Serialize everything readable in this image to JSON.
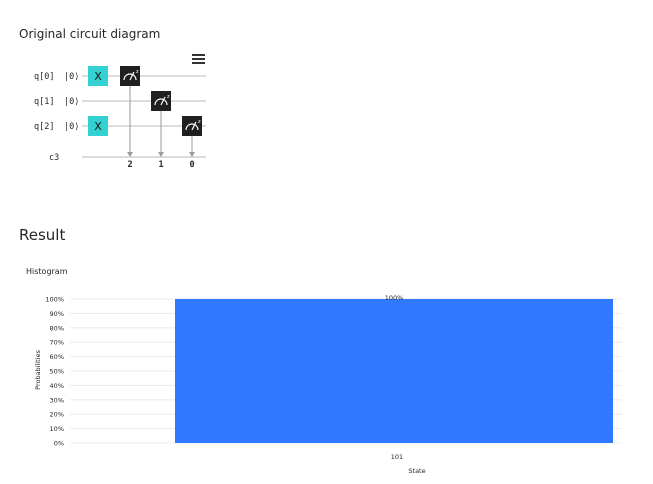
{
  "circuit_section": {
    "title": "Original circuit diagram",
    "qubits": [
      {
        "label": "q[0]",
        "ket": "|0⟩"
      },
      {
        "label": "q[1]",
        "ket": "|0⟩"
      },
      {
        "label": "q[2]",
        "ket": "|0⟩"
      }
    ],
    "classical_register": "c3",
    "gates": [
      {
        "type": "X",
        "qubit": 0,
        "label": "X"
      },
      {
        "type": "X",
        "qubit": 2,
        "label": "X"
      }
    ],
    "measurements": [
      {
        "qubit": 0,
        "bit_label": "2"
      },
      {
        "qubit": 1,
        "bit_label": "1"
      },
      {
        "qubit": 2,
        "bit_label": "0"
      }
    ],
    "colors": {
      "x_gate": "#33d1d1",
      "measure_gate": "#1f1f1f",
      "wire": "#b0b0b0"
    },
    "menu_icon": "hamburger-menu-icon"
  },
  "result_section": {
    "title": "Result",
    "histogram_label": "Histogram"
  },
  "chart_data": {
    "type": "bar",
    "categories": [
      "101"
    ],
    "values": [
      100
    ],
    "value_labels": [
      "100%"
    ],
    "xlabel": "State",
    "ylabel": "Probabilities",
    "ylim": [
      0,
      100
    ],
    "yticks": [
      "0%",
      "10%",
      "20%",
      "30%",
      "40%",
      "50%",
      "60%",
      "70%",
      "80%",
      "90%",
      "100%"
    ],
    "grid": true,
    "bar_color": "#2f78ff"
  }
}
